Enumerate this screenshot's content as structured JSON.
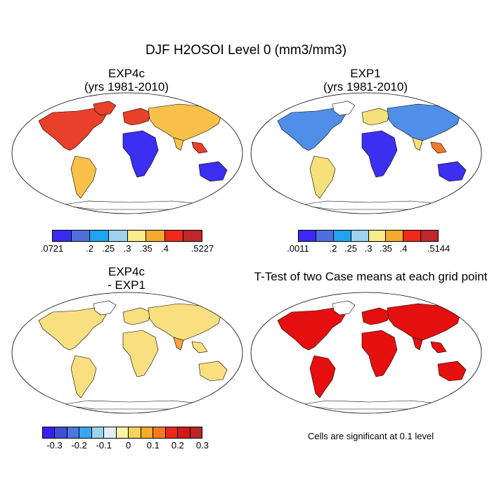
{
  "title": "DJF H2OSOI Level 0 (mm3/mm3)",
  "panels": [
    {
      "id": "p1",
      "title_line1": "EXP4c",
      "title_line2": "(yrs 1981-2010)",
      "colorbar": {
        "colors": [
          "#3b2bf2",
          "#4f6fe0",
          "#1ea4f0",
          "#9fd2ef",
          "#f9ec8a",
          "#f7ab2e",
          "#f02a1a",
          "#c1262a"
        ],
        "labels": [
          ".0721",
          ".2",
          ".25",
          ".3",
          ".35",
          ".4",
          ".5227"
        ],
        "label_fractions": [
          0.0,
          0.25,
          0.375,
          0.5,
          0.625,
          0.75,
          1.0
        ]
      }
    },
    {
      "id": "p2",
      "title_line1": "EXP1",
      "title_line2": "(yrs 1981-2010)",
      "colorbar": {
        "colors": [
          "#3b2bf2",
          "#4f6fe0",
          "#1ea4f0",
          "#9fd2ef",
          "#f9ec8a",
          "#f7ab2e",
          "#f02a1a",
          "#c1262a"
        ],
        "labels": [
          ".0011",
          ".2",
          ".25",
          ".3",
          ".35",
          ".4",
          ".5144"
        ],
        "label_fractions": [
          0.0,
          0.25,
          0.375,
          0.5,
          0.625,
          0.75,
          1.0
        ]
      }
    },
    {
      "id": "p3",
      "title_line1": "EXP4c",
      "title_line2": "- EXP1",
      "colorbar": {
        "colors": [
          "#3920f0",
          "#3f4fd8",
          "#4a78e4",
          "#3aa4ef",
          "#9fd2ef",
          "#dff1f7",
          "#fff3a8",
          "#fbd35b",
          "#f9ab2a",
          "#f57a1c",
          "#ec2a1a",
          "#d0191b",
          "#b8262a"
        ],
        "labels": [
          "-0.3",
          "-0.2",
          "-0.1",
          "0",
          "0.1",
          "0.2",
          "0.3"
        ],
        "label_fractions": [
          0.077,
          0.231,
          0.385,
          0.538,
          0.692,
          0.846,
          1.0
        ]
      }
    },
    {
      "id": "p4",
      "title": "T-Test of two Case means at each grid point",
      "footnote": "Cells are significant at 0.1 level",
      "fill_color": "#e60f0f"
    }
  ],
  "land_colors": {
    "p1": {
      "high": "#e8402a",
      "mid": "#f9c04a",
      "low": "#3c2ff0",
      "ocean_fill": "#ffffff"
    },
    "p2": {
      "high": "#f07a2a",
      "mid": "#f7e07a",
      "low": "#3c2ff0",
      "ocean_fill": "#ffffff"
    },
    "p3": {
      "pos": "#f9df80",
      "neg": "#8fc7ec",
      "strong": "#f5a33a"
    },
    "p4": {
      "sig": "#e60f0f"
    }
  }
}
